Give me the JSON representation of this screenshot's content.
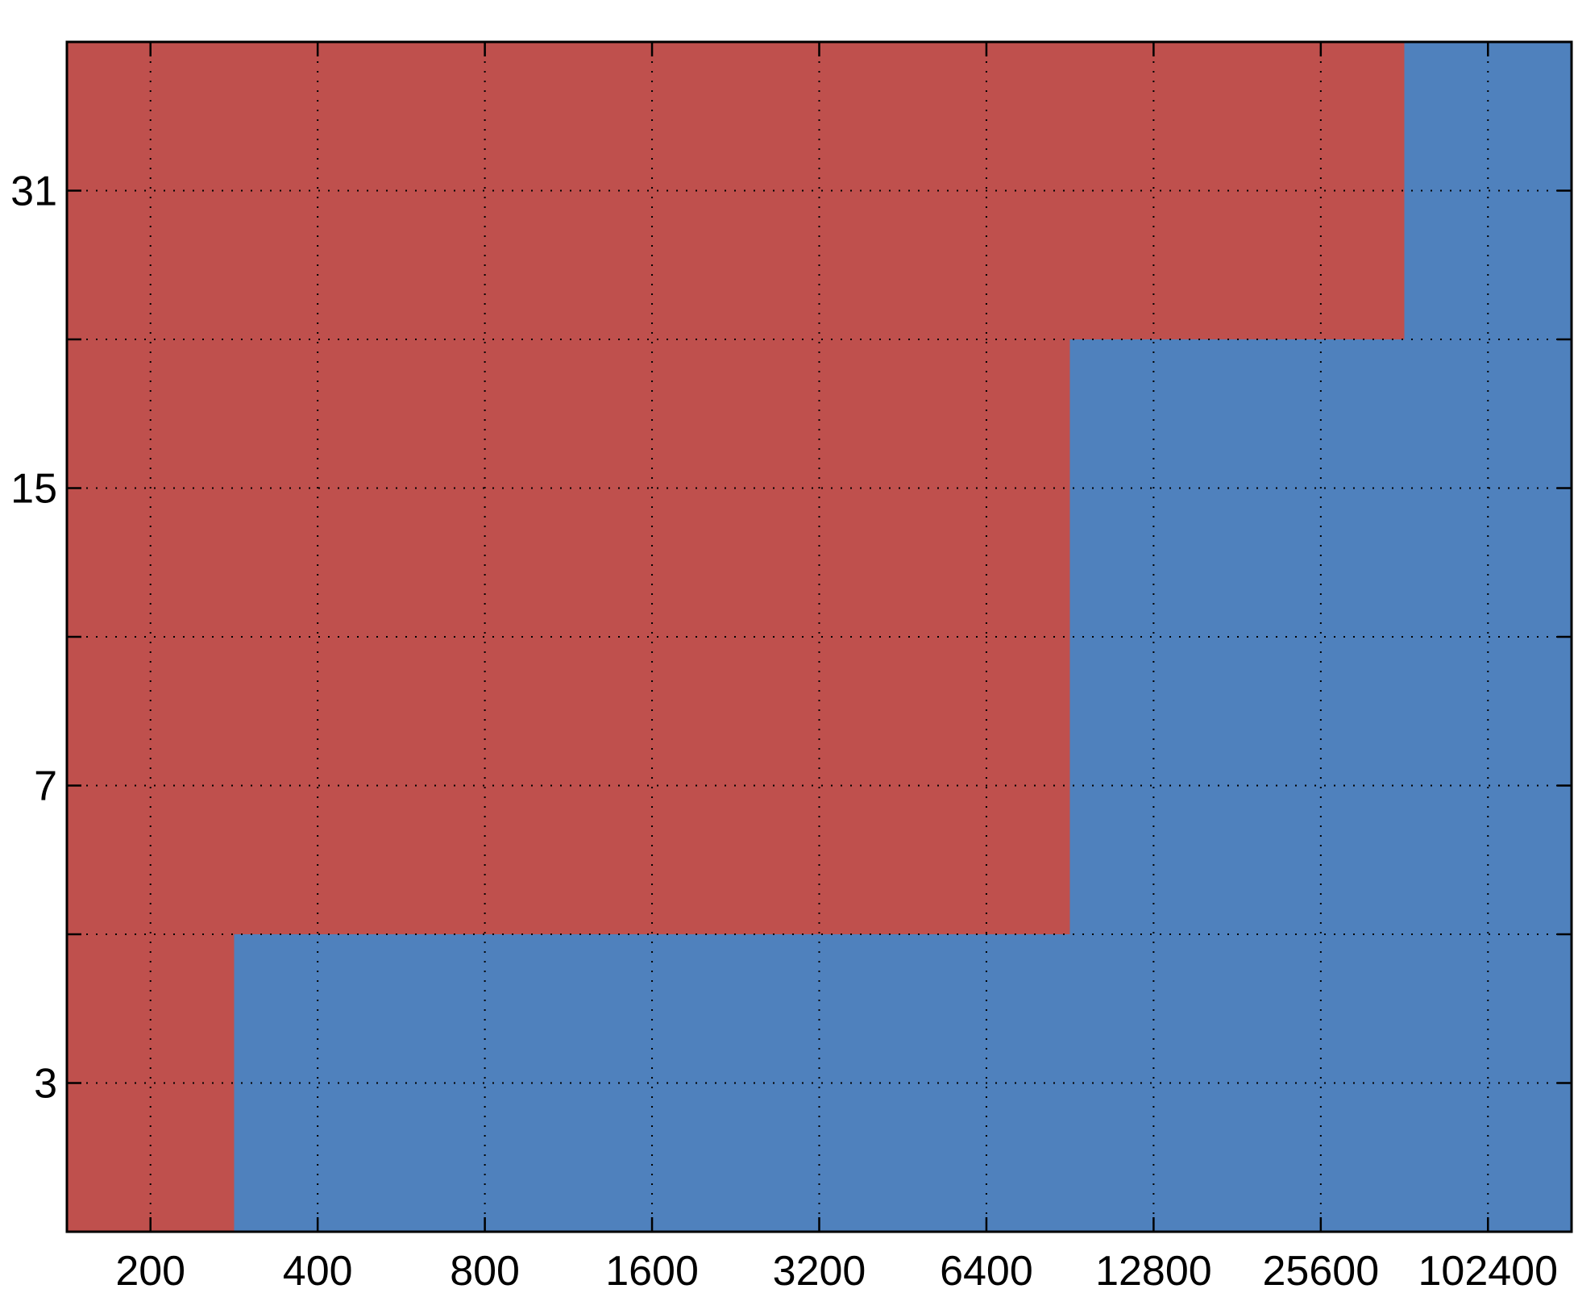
{
  "chart_data": {
    "type": "heatmap",
    "title": "",
    "xlabel": "",
    "ylabel": "",
    "x_categories": [
      "200",
      "400",
      "800",
      "1600",
      "3200",
      "6400",
      "12800",
      "25600",
      "102400"
    ],
    "y_categories": [
      "3",
      "7",
      "15",
      "31"
    ],
    "grid": true,
    "legend": "none",
    "colors": {
      "red": "#bf504d",
      "blue": "#4f81bd",
      "grid": "#000000",
      "axis": "#000000"
    },
    "regions": [
      {
        "color": "red",
        "x_from": 0,
        "x_to": 1,
        "y_from": 0,
        "y_to": 2
      },
      {
        "color": "blue",
        "x_from": 1,
        "x_to": 9,
        "y_from": 0,
        "y_to": 2
      },
      {
        "color": "red",
        "x_from": 0,
        "x_to": 6,
        "y_from": 2,
        "y_to": 8
      },
      {
        "color": "blue",
        "x_from": 6,
        "x_to": 9,
        "y_from": 2,
        "y_to": 6
      },
      {
        "color": "red",
        "x_from": 6,
        "x_to": 8,
        "y_from": 6,
        "y_to": 8
      },
      {
        "color": "blue",
        "x_from": 8,
        "x_to": 9,
        "y_from": 6,
        "y_to": 8
      }
    ],
    "y_half_steps": 8
  }
}
